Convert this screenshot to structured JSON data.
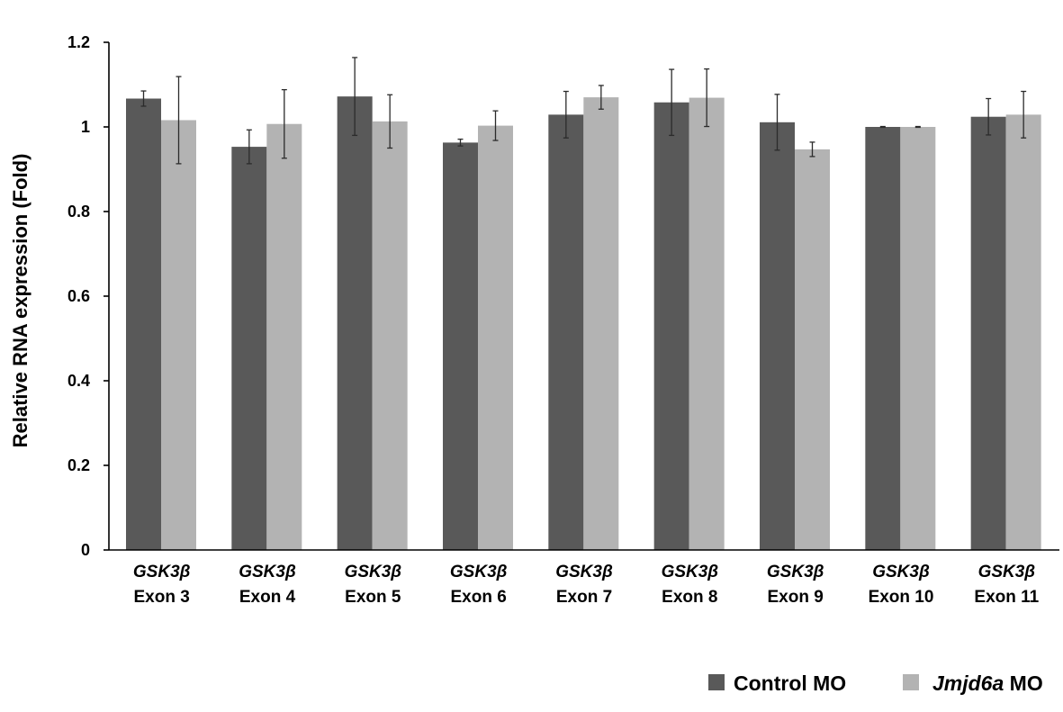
{
  "chart_data": {
    "type": "bar",
    "ylabel": "Relative RNA expression (Fold)",
    "ylim": [
      0,
      1.2
    ],
    "yticks": [
      0,
      0.2,
      0.4,
      0.6,
      0.8,
      1,
      1.2
    ],
    "ytick_labels": [
      "0",
      "0.2",
      "0.4",
      "0.6",
      "0.8",
      "1",
      "1.2"
    ],
    "grid": false,
    "legend_position": "bottom-right",
    "categories": [
      {
        "gene": "GSK3β",
        "exon": "Exon 3"
      },
      {
        "gene": "GSK3β",
        "exon": "Exon 4"
      },
      {
        "gene": "GSK3β",
        "exon": "Exon 5"
      },
      {
        "gene": "GSK3β",
        "exon": "Exon 6"
      },
      {
        "gene": "GSK3β",
        "exon": "Exon 7"
      },
      {
        "gene": "GSK3β",
        "exon": "Exon 8"
      },
      {
        "gene": "GSK3β",
        "exon": "Exon 9"
      },
      {
        "gene": "GSK3β",
        "exon": "Exon 10"
      },
      {
        "gene": "GSK3β",
        "exon": "Exon 11"
      }
    ],
    "series": [
      {
        "name": "Control MO",
        "name_italic_part": "",
        "name_plain_part": "Control MO",
        "color": "#595959",
        "values": [
          1.067,
          0.953,
          1.072,
          0.963,
          1.029,
          1.058,
          1.011,
          1.0,
          1.024
        ],
        "errors": [
          0.018,
          0.04,
          0.092,
          0.008,
          0.055,
          0.078,
          0.066,
          0.001,
          0.043
        ]
      },
      {
        "name": "Jmjd6a MO",
        "name_italic_part": "Jmjd6a",
        "name_plain_part": " MO",
        "color": "#b3b3b3",
        "values": [
          1.016,
          1.007,
          1.013,
          1.003,
          1.07,
          1.069,
          0.947,
          1.0,
          1.029
        ],
        "errors": [
          0.103,
          0.081,
          0.063,
          0.035,
          0.028,
          0.068,
          0.017,
          0.001,
          0.055
        ]
      }
    ]
  }
}
